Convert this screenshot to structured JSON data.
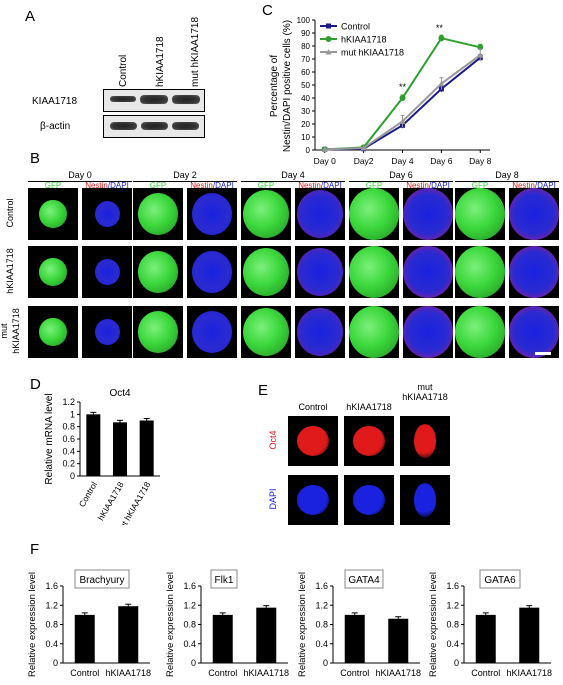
{
  "panels": {
    "A": {
      "letter": "A",
      "lanes": [
        "Control",
        "hKIAA1718",
        "mut hKIAA1718"
      ],
      "rows": [
        "KIAA1718",
        "β-actin"
      ]
    },
    "B": {
      "letter": "B",
      "days": [
        "Day 0",
        "Day 2",
        "Day 4",
        "Day 6",
        "Day 8"
      ],
      "gfp_label": "GFP",
      "nestin_label": "Nestin",
      "dapi_label": "/DAPI",
      "rows": [
        "Control",
        "hKIAA1718",
        "mut",
        "hKIAA1718"
      ]
    },
    "E": {
      "letter": "E",
      "cols": [
        "Control",
        "hKIAA1718",
        "mut",
        "hKIAA1718"
      ],
      "rows": [
        "Oct4",
        "DAPI"
      ]
    },
    "F": {
      "letter": "F"
    }
  },
  "colors": {
    "control": "#1a1a8c",
    "hkiaa": "#2e9e2e",
    "mut": "#999999",
    "gfp": "#3cd83c",
    "dapi": "#1a22e0",
    "nestin": "#e01a1a"
  },
  "chart_data": [
    {
      "id": "C",
      "letter": "C",
      "type": "line",
      "x": [
        "Day 0",
        "Day2",
        "Day 4",
        "Day 6",
        "Day 8"
      ],
      "ylabel": "Percentage of Nestin/DAPI positive cells (%)",
      "ylabel_line1": "Percentage of",
      "ylabel_line2": "Nestin/DAPI positive cells (%)",
      "ylim": [
        0,
        100
      ],
      "yticks": [
        0,
        10,
        20,
        30,
        40,
        50,
        60,
        70,
        80,
        90,
        100
      ],
      "series": [
        {
          "name": "Control",
          "values": [
            0.5,
            1,
            19,
            47,
            71
          ]
        },
        {
          "name": "hKIAA1718",
          "values": [
            0.5,
            2,
            40,
            86,
            79
          ]
        },
        {
          "name": "mut hKIAA1718",
          "values": [
            0.5,
            1.5,
            22,
            51,
            73
          ]
        }
      ],
      "annotations": [
        "**",
        "**"
      ],
      "legend": "top-left"
    },
    {
      "id": "D",
      "letter": "D",
      "type": "bar",
      "title": "Oct4",
      "categories": [
        "Control",
        "hKIAA1718",
        "mut hKIAA1718"
      ],
      "values": [
        1.0,
        0.87,
        0.9
      ],
      "ylabel": "Relative mRNA level",
      "ylim": [
        0,
        1.2
      ],
      "yticks": [
        0,
        0.2,
        0.4,
        0.6,
        0.8,
        1.0,
        1.2
      ]
    },
    {
      "id": "F1",
      "type": "bar",
      "title": "Brachyury",
      "categories": [
        "Control",
        "hKIAA1718"
      ],
      "values": [
        1.0,
        1.18
      ],
      "ylabel": "Relative expression level",
      "ylim": [
        0,
        1.6
      ],
      "yticks": [
        0,
        0.4,
        0.8,
        1.2,
        1.6
      ]
    },
    {
      "id": "F2",
      "type": "bar",
      "title": "Flk1",
      "categories": [
        "Control",
        "hKIAA1718"
      ],
      "values": [
        1.0,
        1.15
      ],
      "ylabel": "Relative expression level",
      "ylim": [
        0,
        1.6
      ],
      "yticks": [
        0,
        0.4,
        0.8,
        1.2,
        1.6
      ]
    },
    {
      "id": "F3",
      "type": "bar",
      "title": "GATA4",
      "categories": [
        "Control",
        "hKIAA1718"
      ],
      "values": [
        1.0,
        0.92
      ],
      "ylabel": "Relative expression level",
      "ylim": [
        0,
        1.6
      ],
      "yticks": [
        0,
        0.4,
        0.8,
        1.2,
        1.6
      ]
    },
    {
      "id": "F4",
      "type": "bar",
      "title": "GATA6",
      "categories": [
        "Control",
        "hKIAA1718"
      ],
      "values": [
        1.0,
        1.15
      ],
      "ylabel": "Relative expression level",
      "ylim": [
        0,
        1.6
      ],
      "yticks": [
        0,
        0.4,
        0.8,
        1.2,
        1.6
      ]
    }
  ]
}
